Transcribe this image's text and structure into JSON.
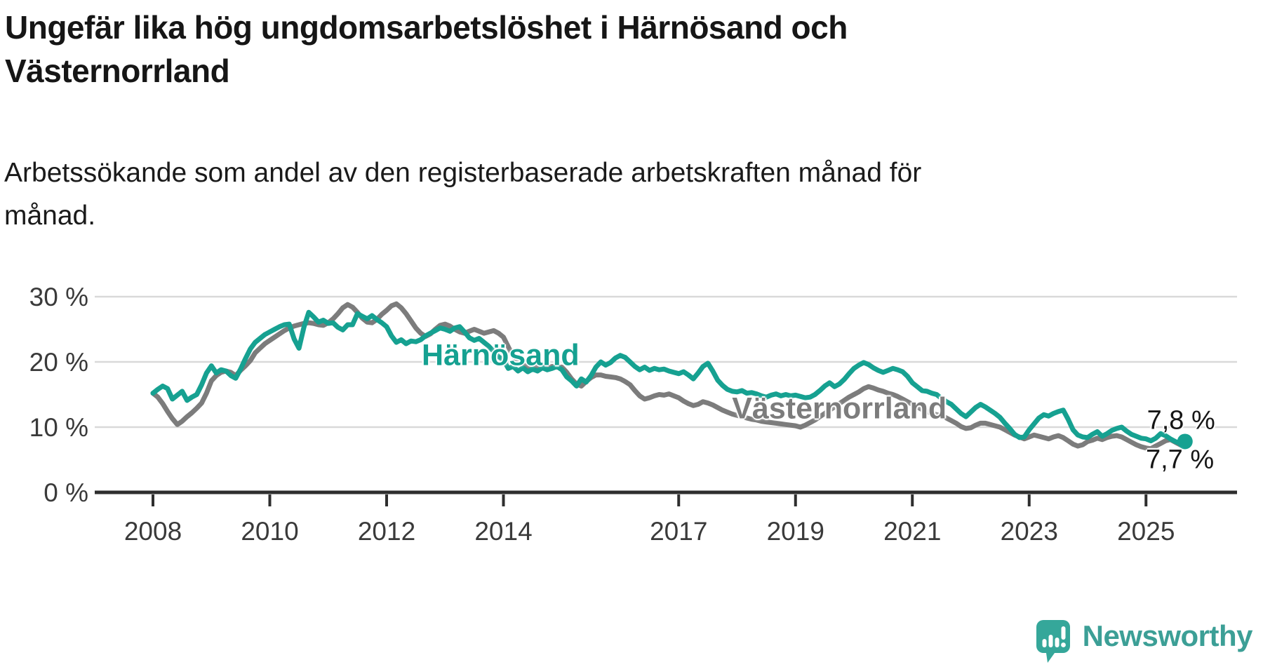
{
  "title": {
    "lines": [
      "Ungefär lika hög ungdomsarbetslöshet i Härnösand och",
      "Västernorrland"
    ]
  },
  "subtitle": {
    "lines": [
      "Arbetssökande som andel av den registerbaserade arbetskraften månad för",
      "månad."
    ]
  },
  "colors": {
    "harnosand": "#16a191",
    "vasternorrland": "#7c7c7c",
    "grid": "#d9d9d9",
    "axis": "#2e2e2e",
    "tick_text": "#3a3a3a",
    "text": "#161616",
    "brand_teal": "#3c9f96",
    "logo_icon_fill": "#35a79a"
  },
  "footer": {
    "brand": "Newsworthy",
    "logo_icon": "bar-chart-speech-bubble"
  },
  "chart_data": {
    "type": "line",
    "x_unit": "decimal_year_monthly",
    "x_start": 2008.0,
    "x_end": 2025.667,
    "x_ticks": [
      2008,
      2010,
      2012,
      2014,
      2017,
      2019,
      2021,
      2023,
      2025
    ],
    "x_tick_labels": [
      "2008",
      "2010",
      "2012",
      "2014",
      "2017",
      "2019",
      "2021",
      "2023",
      "2025"
    ],
    "y_ticks": [
      0,
      10,
      20,
      30
    ],
    "y_tick_labels": [
      "0 %",
      "10 %",
      "20 %",
      "30 %"
    ],
    "ylim": [
      0,
      32
    ],
    "grid": "horizontal",
    "legend": "inline-labels",
    "series": [
      {
        "name": "Härnösand",
        "color_key": "harnosand",
        "end_value_label": "7,8 %",
        "values": [
          15.2,
          15.8,
          16.3,
          15.9,
          14.3,
          14.9,
          15.5,
          14.1,
          14.6,
          15.0,
          16.5,
          18.3,
          19.4,
          18.3,
          18.8,
          18.6,
          17.9,
          17.5,
          18.9,
          20.5,
          22.0,
          23.0,
          23.6,
          24.2,
          24.6,
          25.0,
          25.4,
          25.7,
          25.8,
          23.5,
          22.1,
          25.3,
          27.6,
          26.9,
          26.1,
          26.4,
          25.9,
          26.0,
          25.3,
          24.9,
          25.7,
          25.7,
          27.4,
          27.0,
          26.6,
          27.1,
          26.5,
          26.0,
          25.4,
          24.0,
          23.0,
          23.4,
          22.8,
          23.2,
          23.1,
          23.4,
          24.0,
          24.4,
          24.8,
          25.2,
          25.0,
          24.7,
          25.2,
          25.4,
          24.6,
          23.7,
          23.3,
          23.6,
          23.0,
          22.4,
          21.6,
          20.8,
          20.3,
          19.0,
          19.3,
          18.6,
          19.1,
          18.5,
          18.9,
          18.6,
          19.1,
          18.8,
          19.0,
          19.3,
          18.8,
          17.7,
          17.1,
          16.3,
          17.4,
          16.9,
          17.9,
          19.2,
          20.0,
          19.5,
          19.9,
          20.6,
          21.0,
          20.7,
          20.0,
          19.3,
          18.8,
          19.2,
          18.7,
          19.0,
          18.8,
          18.9,
          18.6,
          18.4,
          18.2,
          18.5,
          18.0,
          17.4,
          18.3,
          19.3,
          19.8,
          18.6,
          17.2,
          16.4,
          15.8,
          15.5,
          15.4,
          15.6,
          15.2,
          15.3,
          15.1,
          14.8,
          14.6,
          14.9,
          15.1,
          14.8,
          15.0,
          14.8,
          14.9,
          14.7,
          14.5,
          14.6,
          15.0,
          15.6,
          16.3,
          16.8,
          16.2,
          16.6,
          17.3,
          18.2,
          19.0,
          19.5,
          19.9,
          19.6,
          19.1,
          18.7,
          18.4,
          18.7,
          19.0,
          18.8,
          18.5,
          17.8,
          16.8,
          16.2,
          15.6,
          15.5,
          15.2,
          15.0,
          14.4,
          13.9,
          13.5,
          12.8,
          12.1,
          11.6,
          12.3,
          13.0,
          13.5,
          13.1,
          12.6,
          12.1,
          11.5,
          10.6,
          9.8,
          8.9,
          8.4,
          8.5,
          9.6,
          10.5,
          11.4,
          11.9,
          11.7,
          12.1,
          12.4,
          12.6,
          11.2,
          9.6,
          8.8,
          8.5,
          8.4,
          8.9,
          9.3,
          8.6,
          9.0,
          9.5,
          9.8,
          10.0,
          9.4,
          8.9,
          8.6,
          8.3,
          8.2,
          7.9,
          8.3,
          9.0,
          8.7,
          8.2,
          7.8,
          7.5,
          7.8
        ]
      },
      {
        "name": "Västernorrland",
        "color_key": "vasternorrland",
        "end_value_label": "7,7 %",
        "values": [
          15.2,
          14.6,
          13.6,
          12.4,
          11.3,
          10.4,
          10.9,
          11.6,
          12.2,
          12.9,
          13.7,
          15.2,
          17.1,
          17.9,
          18.4,
          18.6,
          18.4,
          17.9,
          18.7,
          19.4,
          20.2,
          21.4,
          22.1,
          22.8,
          23.3,
          23.8,
          24.3,
          24.8,
          25.2,
          25.5,
          25.7,
          25.9,
          26.0,
          25.9,
          25.7,
          25.6,
          26.0,
          26.6,
          27.4,
          28.3,
          28.8,
          28.4,
          27.6,
          26.7,
          26.1,
          26.0,
          26.5,
          27.3,
          27.9,
          28.6,
          28.9,
          28.3,
          27.4,
          26.3,
          25.2,
          24.4,
          23.9,
          24.3,
          25.0,
          25.6,
          25.8,
          25.5,
          25.0,
          24.6,
          24.4,
          24.7,
          25.0,
          24.7,
          24.4,
          24.6,
          24.8,
          24.4,
          23.8,
          22.3,
          20.9,
          20.1,
          19.6,
          19.3,
          19.6,
          19.2,
          19.5,
          19.1,
          19.3,
          19.2,
          19.2,
          18.4,
          17.4,
          16.6,
          16.3,
          17.0,
          17.6,
          18.0,
          18.0,
          17.8,
          17.7,
          17.6,
          17.4,
          17.0,
          16.5,
          15.6,
          14.8,
          14.3,
          14.5,
          14.8,
          15.0,
          14.9,
          15.1,
          14.8,
          14.5,
          14.0,
          13.6,
          13.3,
          13.5,
          13.9,
          13.7,
          13.4,
          13.0,
          12.6,
          12.3,
          12.0,
          11.8,
          11.6,
          11.4,
          11.2,
          11.1,
          10.9,
          10.8,
          10.7,
          10.6,
          10.5,
          10.4,
          10.3,
          10.2,
          10.0,
          10.3,
          10.7,
          11.1,
          11.6,
          12.1,
          12.6,
          13.1,
          13.6,
          14.1,
          14.6,
          15.0,
          15.4,
          15.9,
          16.2,
          16.0,
          15.7,
          15.5,
          15.2,
          15.0,
          14.7,
          14.3,
          13.9,
          13.5,
          13.1,
          12.7,
          12.4,
          12.1,
          11.9,
          11.8,
          11.4,
          11.0,
          10.6,
          10.1,
          9.8,
          9.9,
          10.3,
          10.6,
          10.6,
          10.4,
          10.2,
          10.0,
          9.6,
          9.2,
          8.8,
          8.5,
          8.2,
          8.5,
          8.8,
          8.6,
          8.4,
          8.2,
          8.5,
          8.7,
          8.4,
          7.9,
          7.4,
          7.1,
          7.3,
          7.8,
          8.0,
          8.3,
          8.1,
          8.4,
          8.6,
          8.7,
          8.5,
          8.1,
          7.7,
          7.3,
          7.0,
          6.8,
          6.7,
          7.1,
          7.5,
          7.9,
          8.1,
          7.7,
          7.3,
          7.7
        ]
      }
    ],
    "annotations": {
      "series_labels": [
        {
          "text": "Härnösand",
          "x": 2013.95,
          "y": 21.0,
          "color_key": "harnosand"
        },
        {
          "text": "Västernorrland",
          "x": 2019.75,
          "y": 12.8,
          "color_key": "vasternorrland"
        }
      ],
      "end_labels": [
        {
          "text": "7,8 %",
          "x": 2025.6,
          "y": 11.0
        },
        {
          "text": "7,7 %",
          "x": 2025.58,
          "y": 4.9
        }
      ],
      "end_dot": {
        "series": "Härnösand",
        "x": 2025.667,
        "y": 7.8
      }
    }
  }
}
